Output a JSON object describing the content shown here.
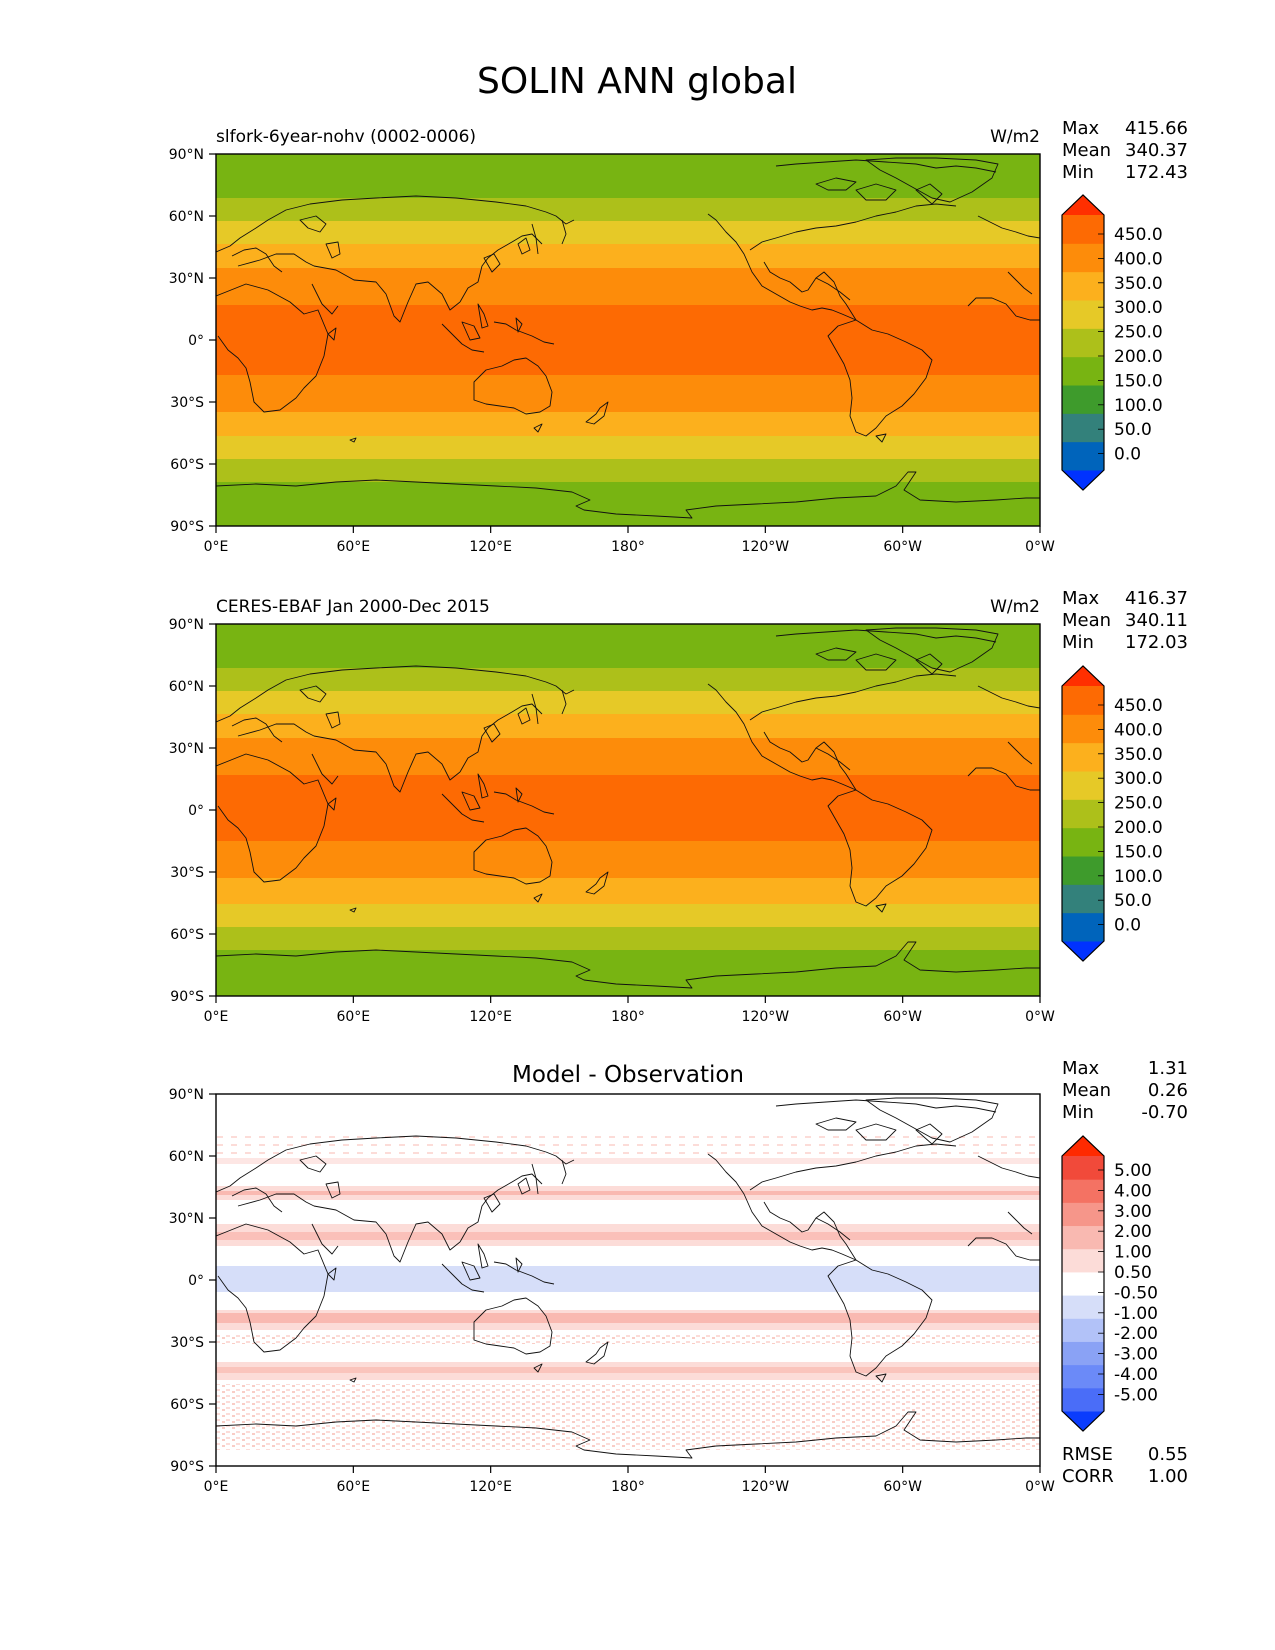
{
  "title": "SOLIN ANN global",
  "x_ticks": [
    "0°E",
    "60°E",
    "120°E",
    "180°",
    "120°W",
    "60°W",
    "0°W"
  ],
  "y_ticks": [
    "90°N",
    "60°N",
    "30°N",
    "0°",
    "30°S",
    "60°S",
    "90°S"
  ],
  "colors": {
    "abs_levels": [
      "#0032ff",
      "#0064bb",
      "#33817b",
      "#3e9b2c",
      "#78b412",
      "#adc01a",
      "#e6c927",
      "#fcb01d",
      "#fd8c0a",
      "#fd6a03",
      "#ff2f00"
    ],
    "diff_levels": [
      "#0a3cfd",
      "#4a6df8",
      "#6b8af8",
      "#8aa2f5",
      "#b2c2f8",
      "#d6def9",
      "#ffffff",
      "#fcdcd8",
      "#f9b9b1",
      "#f6968a",
      "#f47263",
      "#f14a3a",
      "#fe2a00"
    ]
  },
  "panels": [
    {
      "id": "model",
      "left_title": "slfork-6year-nohv (0002-0006)",
      "units": "W/m2",
      "stats": [
        {
          "label": "Max",
          "value": "415.66"
        },
        {
          "label": "Mean",
          "value": "340.37"
        },
        {
          "label": "Min",
          "value": "172.43"
        }
      ],
      "colorbar_labels": [
        "450.0",
        "400.0",
        "350.0",
        "300.0",
        "250.0",
        "200.0",
        "150.0",
        "100.0",
        "50.0",
        "0.0"
      ]
    },
    {
      "id": "obs",
      "left_title": "CERES-EBAF Jan 2000-Dec 2015",
      "units": "W/m2",
      "stats": [
        {
          "label": "Max",
          "value": "416.37"
        },
        {
          "label": "Mean",
          "value": "340.11"
        },
        {
          "label": "Min",
          "value": "172.03"
        }
      ],
      "colorbar_labels": [
        "450.0",
        "400.0",
        "350.0",
        "300.0",
        "250.0",
        "200.0",
        "150.0",
        "100.0",
        "50.0",
        "0.0"
      ]
    },
    {
      "id": "diff",
      "center_title": "Model - Observation",
      "stats": [
        {
          "label": "Max",
          "value": "1.31"
        },
        {
          "label": "Mean",
          "value": "0.26"
        },
        {
          "label": "Min",
          "value": "-0.70"
        }
      ],
      "colorbar_labels": [
        "5.00",
        "4.00",
        "3.00",
        "2.00",
        "1.00",
        "0.50",
        "-0.50",
        "-1.00",
        "-2.00",
        "-3.00",
        "-4.00",
        "-5.00"
      ],
      "extra_stats": [
        {
          "label": "RMSE",
          "value": "0.55"
        },
        {
          "label": "CORR",
          "value": "1.00"
        }
      ]
    }
  ]
}
